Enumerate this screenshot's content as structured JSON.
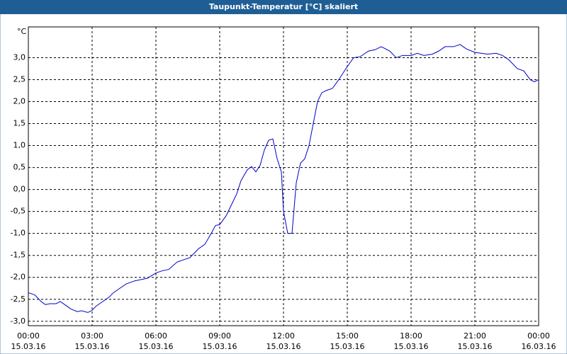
{
  "chart_data": {
    "type": "line",
    "title": "Taupunkt-Temperatur [°C] skaliert",
    "y_unit": "°C",
    "x": [
      0,
      0.3,
      0.6,
      0.8,
      1.0,
      1.3,
      1.5,
      1.8,
      2.0,
      2.3,
      2.5,
      2.8,
      3.0,
      3.2,
      3.5,
      3.8,
      4.0,
      4.3,
      4.6,
      5.0,
      5.3,
      5.6,
      6.0,
      6.3,
      6.6,
      7.0,
      7.3,
      7.6,
      8.0,
      8.3,
      8.6,
      8.8,
      9.0,
      9.3,
      9.6,
      9.8,
      10.0,
      10.3,
      10.5,
      10.7,
      10.9,
      11.1,
      11.3,
      11.5,
      11.7,
      11.9,
      12.0,
      12.2,
      12.4,
      12.6,
      12.8,
      13.0,
      13.2,
      13.4,
      13.6,
      13.8,
      14.0,
      14.3,
      14.6,
      15.0,
      15.3,
      15.6,
      16.0,
      16.3,
      16.6,
      17.0,
      17.3,
      17.6,
      18.0,
      18.3,
      18.6,
      19.0,
      19.3,
      19.6,
      20.0,
      20.3,
      20.6,
      21.0,
      21.3,
      21.6,
      22.0,
      22.3,
      22.6,
      23.0,
      23.3,
      23.6,
      23.8,
      24.0
    ],
    "series": [
      {
        "name": "Taupunkt-Temperatur",
        "color": "#0000c8",
        "values": [
          -2.35,
          -2.4,
          -2.55,
          -2.62,
          -2.6,
          -2.6,
          -2.55,
          -2.65,
          -2.72,
          -2.78,
          -2.76,
          -2.8,
          -2.75,
          -2.65,
          -2.55,
          -2.45,
          -2.35,
          -2.25,
          -2.15,
          -2.08,
          -2.05,
          -2.02,
          -1.9,
          -1.85,
          -1.82,
          -1.65,
          -1.6,
          -1.55,
          -1.35,
          -1.25,
          -1.0,
          -0.82,
          -0.8,
          -0.6,
          -0.3,
          -0.1,
          0.2,
          0.45,
          0.52,
          0.4,
          0.55,
          0.9,
          1.12,
          1.15,
          0.7,
          0.4,
          -0.5,
          -1.0,
          -1.0,
          0.15,
          0.6,
          0.7,
          1.0,
          1.5,
          2.0,
          2.2,
          2.25,
          2.3,
          2.5,
          2.8,
          3.0,
          3.02,
          3.15,
          3.18,
          3.25,
          3.15,
          3.0,
          3.05,
          3.05,
          3.1,
          3.05,
          3.08,
          3.15,
          3.25,
          3.25,
          3.3,
          3.2,
          3.12,
          3.1,
          3.08,
          3.1,
          3.05,
          2.95,
          2.75,
          2.7,
          2.5,
          2.45,
          2.5
        ]
      }
    ],
    "xlim": [
      0,
      24
    ],
    "xticks": [
      {
        "value": 0,
        "label": "00:00"
      },
      {
        "value": 3,
        "label": "03:00"
      },
      {
        "value": 6,
        "label": "06:00"
      },
      {
        "value": 9,
        "label": "09:00"
      },
      {
        "value": 12,
        "label": "12:00"
      },
      {
        "value": 15,
        "label": "15:00"
      },
      {
        "value": 18,
        "label": "18:00"
      },
      {
        "value": 21,
        "label": "21:00"
      },
      {
        "value": 24,
        "label": "00:00"
      }
    ],
    "xtick_dates": [
      "15.03.16",
      "15.03.16",
      "15.03.16",
      "15.03.16",
      "15.03.16",
      "15.03.16",
      "15.03.16",
      "15.03.16",
      "16.03.16"
    ],
    "ylim": [
      -3.1,
      3.7
    ],
    "yticks": [
      {
        "value": -3,
        "label": "-3,0"
      },
      {
        "value": -2.5,
        "label": "-2,5"
      },
      {
        "value": -2,
        "label": "-2,0"
      },
      {
        "value": -1.5,
        "label": "-1,5"
      },
      {
        "value": -1,
        "label": "-1,0"
      },
      {
        "value": -0.5,
        "label": "-0,5"
      },
      {
        "value": 0,
        "label": "0,0"
      },
      {
        "value": 0.5,
        "label": "0,5"
      },
      {
        "value": 1,
        "label": "1,0"
      },
      {
        "value": 1.5,
        "label": "1,5"
      },
      {
        "value": 2,
        "label": "2,0"
      },
      {
        "value": 2.5,
        "label": "2,5"
      },
      {
        "value": 3,
        "label": "3,0"
      }
    ],
    "grid": true
  }
}
